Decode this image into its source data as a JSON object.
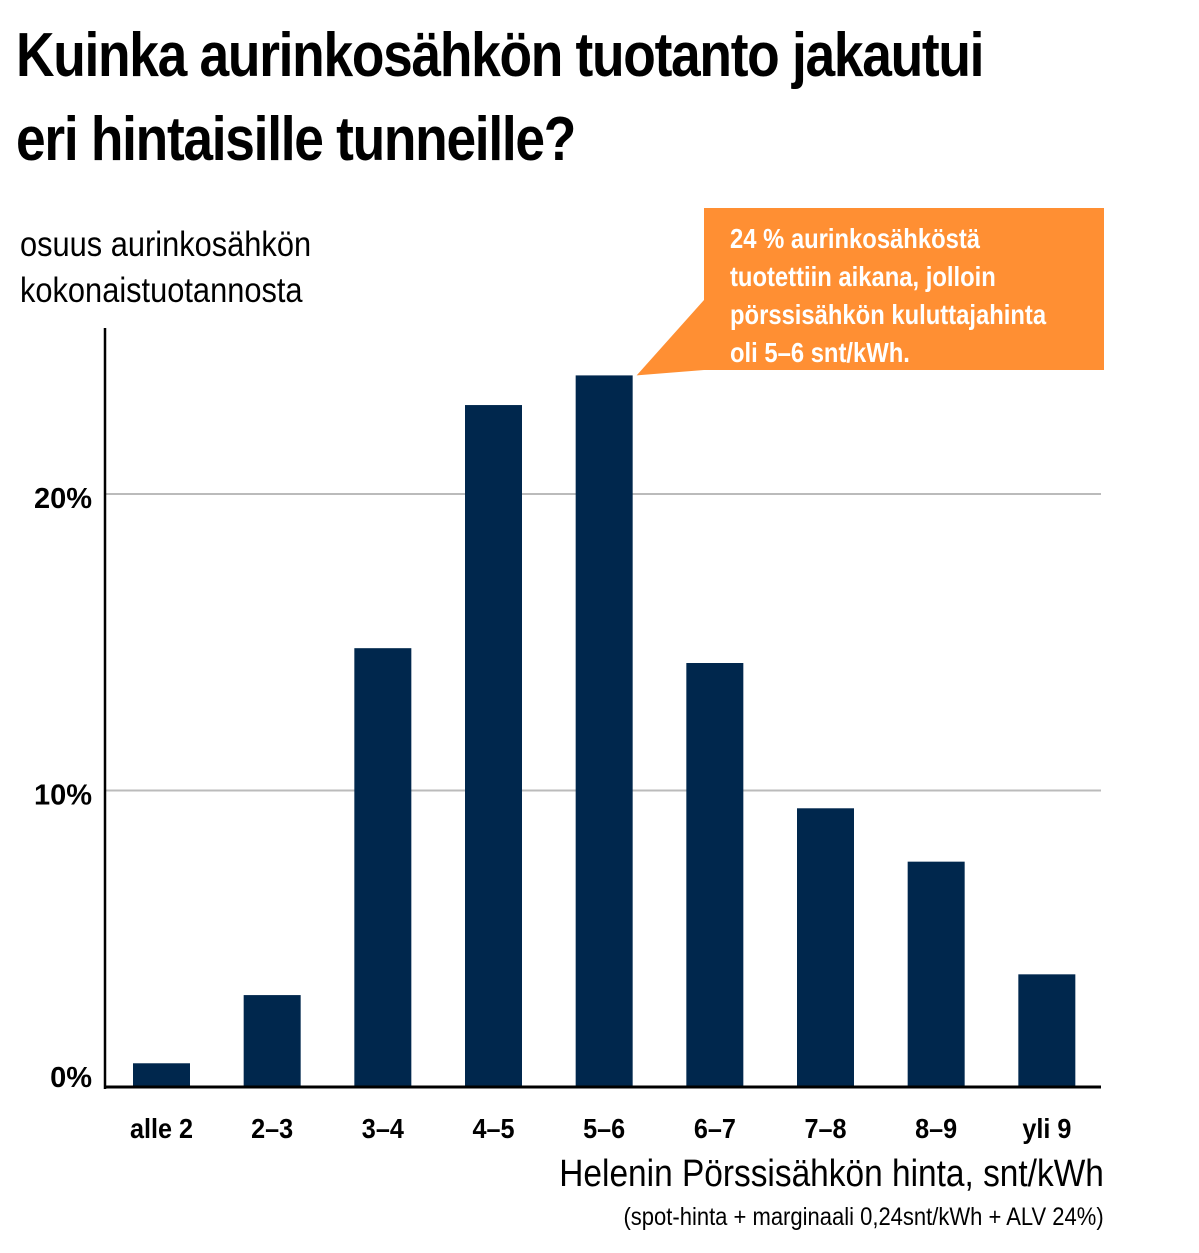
{
  "title_line1": "Kuinka aurinkosähkön tuotanto jakautui",
  "title_line2": "eri hintaisille tunneille?",
  "annotation": {
    "lines": [
      "24 % aurinkosähköstä",
      "tuotettiin aikana, jolloin",
      "pörssisähkön kuluttajahinta",
      "oli 5–6 snt/kWh."
    ],
    "color": "#ff8f33",
    "target_category": "5–6"
  },
  "chart_data": {
    "type": "bar",
    "ylabel_lines": [
      "osuus aurinkosähkön",
      "kokonaistuotannosta"
    ],
    "xlabel": "Helenin Pörssisähkön hinta, snt/kWh",
    "xnote": "(spot-hinta + marginaali 0,24snt/kWh + ALV 24%)",
    "categories": [
      "alle 2",
      "2–3",
      "3–4",
      "4–5",
      "5–6",
      "6–7",
      "7–8",
      "8–9",
      "yli 9"
    ],
    "values": [
      0.8,
      3.1,
      14.8,
      23.0,
      24.0,
      14.3,
      9.4,
      7.6,
      3.8
    ],
    "yticks": [
      0,
      10,
      20
    ],
    "ytick_labels": [
      "0%",
      "10%",
      "20%"
    ],
    "ylim": [
      0,
      25.5
    ],
    "grid": true,
    "bar_color": "#00274d",
    "grid_color": "#bbbbbb"
  }
}
